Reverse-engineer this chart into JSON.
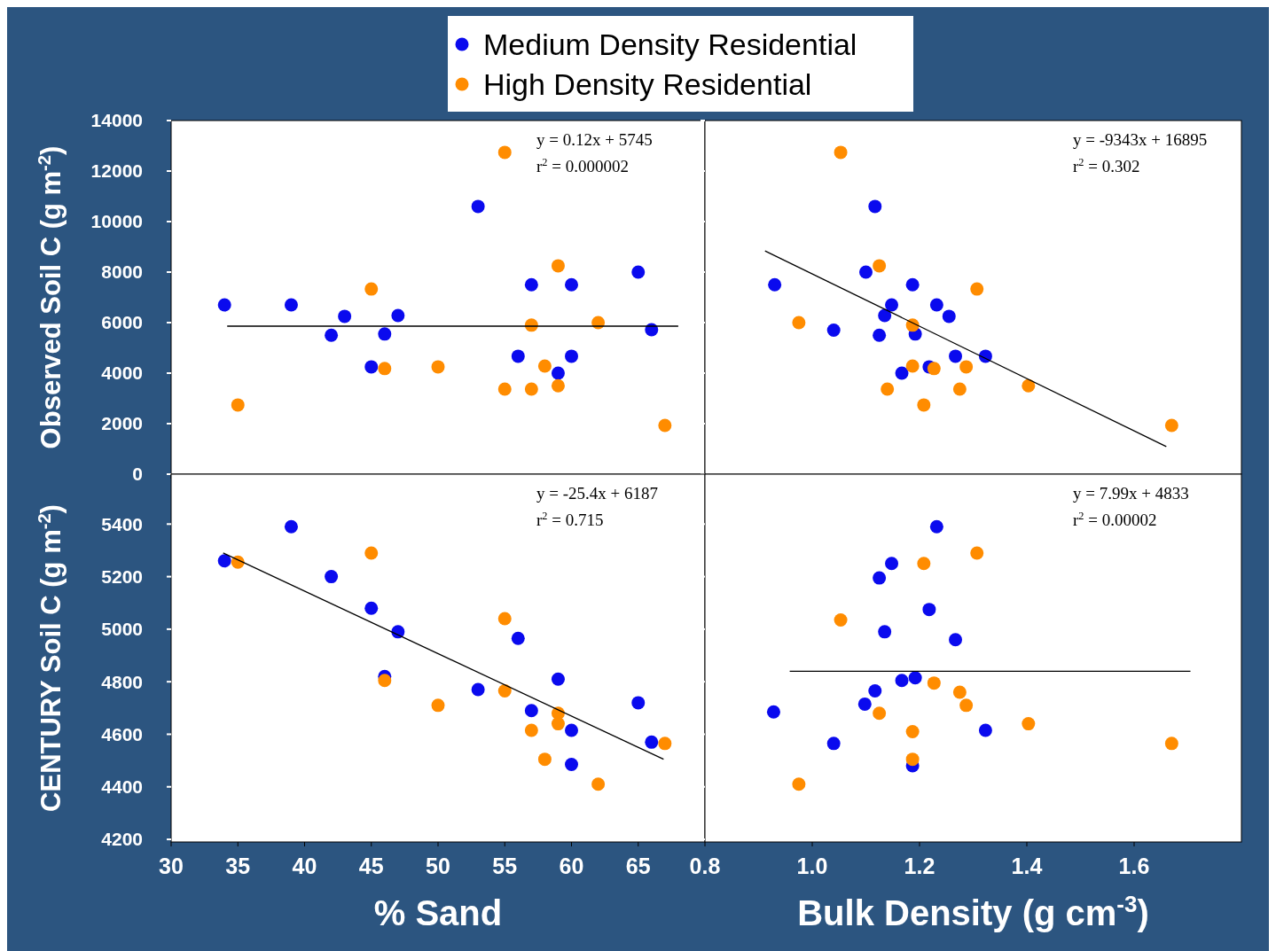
{
  "chart_data": [
    {
      "type": "scatter",
      "ylabel": "Observed Soil C (g m$^{-2}$)",
      "xlim": [
        30,
        70
      ],
      "xticks": [
        30,
        35,
        40,
        45,
        50,
        55,
        60,
        65
      ],
      "ylim": [
        0,
        14000
      ],
      "yticks": [
        0,
        2000,
        4000,
        6000,
        8000,
        10000,
        12000,
        14000
      ],
      "tick_labels": "y",
      "legend": "top",
      "marker": "circle",
      "annotations": [
        "y = 0.12x + 5745",
        "r$^{2}$ = 0.000002"
      ],
      "series": [
        {
          "name": "Medium Density Residential",
          "color": "#0a0aee",
          "x": [
            34,
            39,
            43,
            42,
            45,
            46,
            47,
            53,
            56,
            57,
            59,
            60,
            60,
            65,
            66
          ],
          "values": [
            6700,
            6700,
            6250,
            5500,
            4250,
            5550,
            6280,
            10600,
            4670,
            7500,
            4000,
            7500,
            4670,
            8000,
            5720
          ]
        },
        {
          "name": "High Density Residential",
          "color": "#ff8c00",
          "x": [
            35,
            45,
            46,
            50,
            55,
            55,
            57,
            57,
            58,
            59,
            59,
            62,
            67
          ],
          "values": [
            2740,
            7330,
            4180,
            4250,
            12740,
            3370,
            5900,
            3370,
            4280,
            8250,
            3500,
            6000,
            1930
          ]
        },
        {
          "type": "line",
          "marker": "none",
          "color": "#000000",
          "x": [
            34.2,
            68
          ],
          "values": [
            5860,
            5860
          ]
        }
      ]
    },
    {
      "type": "scatter",
      "xlim": [
        0.8,
        1.8
      ],
      "xticks": [
        0.8,
        1,
        1.2,
        1.4,
        1.6
      ],
      "ylim": [
        0,
        14000
      ],
      "yticks": [
        0,
        2000,
        4000,
        6000,
        8000,
        10000,
        12000,
        14000
      ],
      "tick_labels": false,
      "marker": "circle",
      "annotations": [
        "y = -9343x + 16895",
        "r$^{2}$ = 0.302"
      ],
      "series": [
        {
          "color": "#0a0aee",
          "x": [
            0.93,
            1.04,
            1.1,
            1.125,
            1.135,
            1.148,
            1.167,
            1.187,
            1.192,
            1.218,
            1.232,
            1.255,
            1.267,
            1.323,
            1.117
          ],
          "values": [
            7500,
            5700,
            8000,
            5500,
            6280,
            6700,
            4000,
            7500,
            5550,
            4250,
            6700,
            6250,
            4670,
            4670,
            10600
          ]
        },
        {
          "color": "#ff8c00",
          "x": [
            0.975,
            1.053,
            1.125,
            1.14,
            1.187,
            1.187,
            1.208,
            1.227,
            1.275,
            1.287,
            1.307,
            1.403,
            1.67
          ],
          "values": [
            6000,
            12740,
            8250,
            3370,
            5900,
            4280,
            2740,
            4180,
            3370,
            4250,
            7330,
            3500,
            1930
          ]
        },
        {
          "type": "line",
          "marker": "none",
          "color": "#000000",
          "x": [
            0.912,
            1.66
          ],
          "values": [
            8840,
            1090
          ]
        }
      ]
    },
    {
      "type": "scatter",
      "xlabel": "% Sand",
      "ylabel": "CENTURY Soil C (g m$^{-2}$)",
      "xlim": [
        30,
        70
      ],
      "xticks": [
        30,
        35,
        40,
        45,
        50,
        55,
        60,
        65
      ],
      "ylim": [
        4190,
        5590
      ],
      "yticks": [
        4200,
        4400,
        4600,
        4800,
        5000,
        5200,
        5400
      ],
      "marker": "circle",
      "annotations": [
        "y = -25.4x + 6187",
        "r$^{2}$ = 0.715"
      ],
      "series": [
        {
          "color": "#0a0aee",
          "x": [
            34,
            39,
            42,
            45,
            47,
            46,
            53,
            56,
            57,
            59,
            60,
            60,
            65,
            66
          ],
          "values": [
            5260,
            5390,
            5200,
            5080,
            4990,
            4820,
            4770,
            4965,
            4690,
            4810,
            4615,
            4485,
            4720,
            4570
          ]
        },
        {
          "color": "#ff8c00",
          "x": [
            35,
            45,
            46,
            50,
            55,
            55,
            57,
            58,
            59,
            59,
            62,
            67
          ],
          "values": [
            5255,
            5290,
            4805,
            4710,
            5040,
            4765,
            4615,
            4505,
            4680,
            4640,
            4410,
            4565
          ]
        },
        {
          "type": "line",
          "marker": "none",
          "color": "#000000",
          "x": [
            33.9,
            66.9
          ],
          "values": [
            5290,
            4505
          ]
        }
      ]
    },
    {
      "type": "scatter",
      "xlabel": "Bulk Density (g cm$^{-3}$)",
      "xlim": [
        0.8,
        1.8
      ],
      "xticks": [
        0.8,
        {
          "value": 1,
          "label": "1.0"
        },
        1.2,
        1.4,
        1.6
      ],
      "ylim": [
        4190,
        5590
      ],
      "yticks": [
        4200,
        4400,
        4600,
        4800,
        5000,
        5200,
        5400
      ],
      "tick_labels": "x",
      "marker": "circle",
      "annotations": [
        "y = 7.99x + 4833",
        "r$^{2}$ = 0.00002"
      ],
      "series": [
        {
          "color": "#0a0aee",
          "x": [
            0.928,
            1.04,
            1.098,
            1.117,
            1.125,
            1.135,
            1.148,
            1.167,
            1.192,
            1.187,
            1.218,
            1.232,
            1.267,
            1.323
          ],
          "values": [
            4685,
            4565,
            4715,
            4765,
            5195,
            4990,
            5250,
            4805,
            4815,
            4480,
            5075,
            5390,
            4960,
            4615
          ]
        },
        {
          "color": "#ff8c00",
          "x": [
            0.975,
            1.053,
            1.125,
            1.187,
            1.187,
            1.208,
            1.227,
            1.275,
            1.287,
            1.307,
            1.403,
            1.67
          ],
          "values": [
            4410,
            5035,
            4680,
            4610,
            4505,
            5250,
            4795,
            4760,
            4710,
            5290,
            4640,
            4565
          ]
        },
        {
          "type": "line",
          "marker": "none",
          "color": "#000000",
          "x": [
            0.958,
            1.705
          ],
          "values": [
            4840,
            4840
          ]
        }
      ]
    }
  ]
}
